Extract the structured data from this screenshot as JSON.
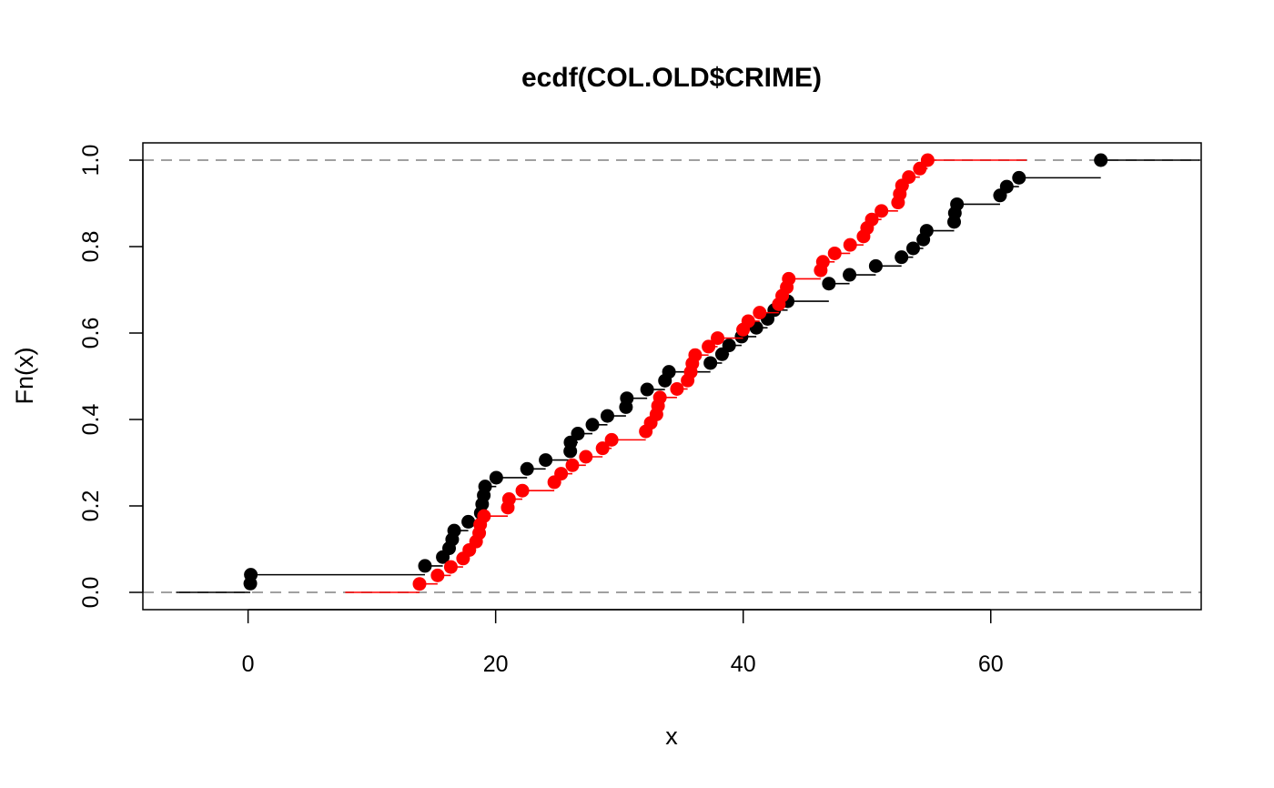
{
  "chart_data": {
    "type": "line",
    "subtype": "ecdf-step",
    "title": "ecdf(COL.OLD$CRIME)",
    "xlabel": "x",
    "ylabel": "Fn(x)",
    "xlim": [
      -8.5,
      77
    ],
    "ylim": [
      -0.04,
      1.04
    ],
    "x_ticks": [
      0,
      20,
      40,
      60
    ],
    "x_tick_labels": [
      "0",
      "20",
      "40",
      "60"
    ],
    "y_ticks": [
      0,
      0.2,
      0.4,
      0.6,
      0.8,
      1.0
    ],
    "y_tick_labels": [
      "0.0",
      "0.2",
      "0.4",
      "0.6",
      "0.8",
      "1.0"
    ],
    "reference_lines": [
      {
        "y": 0,
        "color": "#a0a0a0",
        "style": "dashed"
      },
      {
        "y": 1,
        "color": "#a0a0a0",
        "style": "dashed"
      }
    ],
    "legend": "none",
    "grid": false,
    "series": [
      {
        "color": "#000000",
        "x": [
          0.18,
          0.22,
          14.29,
          15.73,
          16.24,
          16.49,
          16.65,
          17.79,
          18.8,
          18.91,
          19.04,
          19.15,
          20.05,
          22.54,
          24.04,
          26.03,
          26.05,
          26.64,
          27.82,
          29.03,
          30.53,
          30.6,
          32.24,
          33.68,
          34.0,
          37.35,
          38.29,
          38.86,
          39.87,
          41.06,
          41.97,
          42.51,
          43.59,
          46.92,
          48.59,
          50.71,
          52.79,
          53.73,
          54.55,
          54.82,
          57.04,
          57.1,
          57.27,
          60.75,
          61.29,
          62.28,
          68.89
        ],
        "y": [
          0.0204,
          0.0408,
          0.0612,
          0.0816,
          0.102,
          0.1224,
          0.1429,
          0.1633,
          0.1837,
          0.2041,
          0.2245,
          0.2449,
          0.2653,
          0.2857,
          0.3061,
          0.3265,
          0.3469,
          0.3673,
          0.3878,
          0.4082,
          0.4286,
          0.449,
          0.4694,
          0.4898,
          0.5102,
          0.5306,
          0.551,
          0.5714,
          0.5918,
          0.6122,
          0.6327,
          0.6531,
          0.6735,
          0.7143,
          0.7347,
          0.7551,
          0.7755,
          0.7959,
          0.8163,
          0.8367,
          0.8571,
          0.8776,
          0.898,
          0.9184,
          0.9388,
          0.9592,
          1.0
        ]
      },
      {
        "color": "#ff0000",
        "x": [
          13.85,
          15.31,
          16.38,
          17.37,
          17.87,
          18.42,
          18.67,
          18.75,
          19.06,
          20.98,
          21.08,
          22.16,
          24.74,
          25.29,
          26.2,
          27.29,
          28.64,
          29.37,
          32.13,
          32.53,
          32.99,
          33.12,
          33.27,
          34.65,
          35.51,
          35.76,
          35.89,
          36.12,
          37.2,
          37.93,
          39.99,
          40.41,
          41.33,
          42.88,
          43.15,
          43.52,
          43.68,
          46.26,
          46.44,
          47.39,
          48.64,
          49.72,
          50.01,
          50.39,
          51.17,
          52.51,
          52.65,
          52.83,
          53.38,
          54.27,
          54.9
        ],
        "y": [
          0.0196,
          0.0392,
          0.0588,
          0.0784,
          0.098,
          0.1176,
          0.1373,
          0.1569,
          0.1765,
          0.1961,
          0.2157,
          0.2353,
          0.2549,
          0.2745,
          0.2941,
          0.3137,
          0.3333,
          0.3529,
          0.3725,
          0.3922,
          0.4118,
          0.4314,
          0.451,
          0.4706,
          0.4902,
          0.5098,
          0.5294,
          0.549,
          0.5686,
          0.5882,
          0.6078,
          0.6275,
          0.6471,
          0.6667,
          0.6863,
          0.7059,
          0.7255,
          0.7451,
          0.7647,
          0.7843,
          0.8039,
          0.8235,
          0.8431,
          0.8627,
          0.8824,
          0.902,
          0.9216,
          0.9412,
          0.9608,
          0.9804,
          1.0
        ]
      }
    ]
  }
}
